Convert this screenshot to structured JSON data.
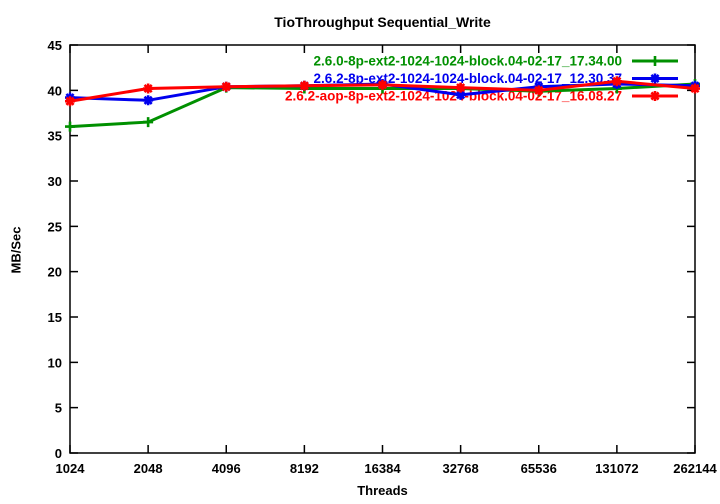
{
  "window": {
    "title": "TioThroughput Sequential_Write"
  },
  "colors": {
    "background": "#ffffff",
    "axis_text": "#000000",
    "border": "#000000",
    "series_green": "#009000",
    "series_blue": "#0000ee",
    "series_red": "#ff0000"
  },
  "chart_data": {
    "type": "line",
    "title": "TioThroughput Sequential_Write",
    "xlabel": "Threads",
    "ylabel": "MB/Sec",
    "x_scale": "log2",
    "grid": false,
    "legend_position": "top-right-inside",
    "categories": [
      "1024",
      "2048",
      "4096",
      "8192",
      "16384",
      "32768",
      "65536",
      "131072",
      "262144"
    ],
    "yticks": [
      0,
      5,
      10,
      15,
      20,
      25,
      30,
      35,
      40,
      45
    ],
    "ylim": [
      0,
      45
    ],
    "series": [
      {
        "name": "2.6.0-8p-ext2-1024-1024-block.04-02-17_17.34.00",
        "color": "#009000",
        "marker": "plus",
        "values": [
          36.0,
          36.5,
          40.3,
          40.2,
          40.2,
          40.2,
          39.9,
          40.2,
          40.7
        ]
      },
      {
        "name": "2.6.2-8p-ext2-1024-1024-block.04-02-17_12.30.37",
        "color": "#0000ee",
        "marker": "asterisk",
        "values": [
          39.2,
          38.9,
          40.4,
          40.5,
          40.7,
          39.5,
          40.4,
          40.7,
          40.5
        ]
      },
      {
        "name": "2.6.2-aop-8p-ext2-1024-1024-block.04-02-17_16.08.27",
        "color": "#ff0000",
        "marker": "asterisk",
        "values": [
          38.8,
          40.2,
          40.4,
          40.5,
          40.6,
          40.3,
          40.0,
          41.0,
          40.2
        ]
      }
    ]
  }
}
